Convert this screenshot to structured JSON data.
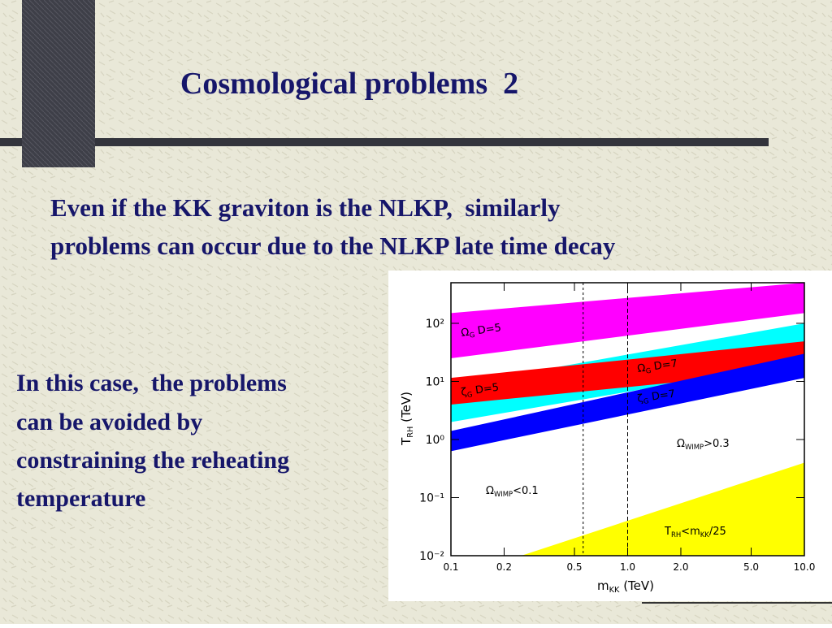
{
  "title": "Cosmological problems  2",
  "intro": [
    "Even if the KK graviton is the NLKP,  similarly",
    "problems can occur due to the NLKP late time decay"
  ],
  "note": [
    "In this case,  the problems",
    "can be avoided by",
    "constraining the reheating",
    "temperature"
  ],
  "figure": {
    "chart_data": {
      "type": "band",
      "x_label": [
        "m",
        "KK",
        " (TeV)"
      ],
      "y_label": [
        "T",
        "RH",
        " (TeV)"
      ],
      "log_x": true,
      "log_y": true,
      "xlim": [
        0.1,
        10
      ],
      "ylim": [
        0.01,
        500
      ],
      "xticks": [
        0.1,
        0.2,
        0.5,
        {
          "value": 1,
          "label": "1.0"
        },
        {
          "value": 2,
          "label": "2.0"
        },
        {
          "value": 5,
          "label": "5.0"
        },
        {
          "value": 10,
          "label": "10.0"
        }
      ],
      "yticks": [
        {
          "value": 0.01,
          "label": "10⁻²"
        },
        {
          "value": 0.1,
          "label": "10⁻¹"
        },
        {
          "value": 1,
          "label": "10⁰"
        },
        {
          "value": 10,
          "label": "10¹"
        },
        {
          "value": 100,
          "label": "10²"
        }
      ],
      "vlines": [
        0.56,
        1
      ],
      "series": [
        {
          "color": "#ff00ff",
          "x": [
            0.1,
            10
          ],
          "lower": [
            25,
            150
          ],
          "upper": [
            150,
            500
          ]
        },
        {
          "color": "#00ffff",
          "x": [
            0.1,
            10
          ],
          "lower": [
            2,
            22
          ],
          "upper": [
            8.4,
            100
          ]
        },
        {
          "color": "#ff0000",
          "x": [
            0.1,
            10
          ],
          "lower": [
            4,
            16
          ],
          "upper": [
            11.5,
            49
          ]
        },
        {
          "color": "#0000ff",
          "x": [
            0.1,
            10
          ],
          "lower": [
            0.63,
            11.5
          ],
          "upper": [
            1.4,
            30
          ]
        },
        {
          "color": "#ffff00",
          "x": [
            0.25,
            10
          ],
          "lower": [
            0.01,
            0.01
          ],
          "upper": [
            0.01,
            0.4
          ]
        }
      ],
      "annotations": [
        [
          "Ω",
          "G",
          " D=5"
        ],
        [
          "Ω",
          "G",
          " D=7"
        ],
        [
          "ζ",
          "G",
          " D=5"
        ],
        [
          "ζ",
          "G",
          " D=7"
        ],
        [
          "Ω",
          "WIMP",
          ">0.3"
        ],
        [
          "Ω",
          "WIMP",
          "<0.1"
        ],
        [
          "T",
          "RH",
          "<m",
          "KK",
          "/25"
        ]
      ]
    }
  }
}
